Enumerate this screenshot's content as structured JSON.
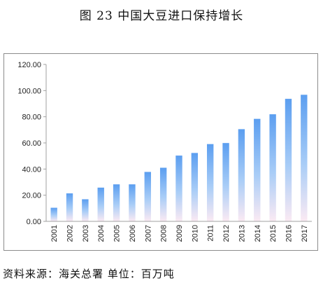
{
  "figure_title": "图 23  中国大豆进口保持增长",
  "source_note": "资料来源：海关总署  单位：百万吨",
  "chart_data": {
    "type": "bar",
    "title": "",
    "xlabel": "",
    "ylabel": "",
    "categories": [
      "2001",
      "2002",
      "2003",
      "2004",
      "2005",
      "2006",
      "2007",
      "2008",
      "2009",
      "2010",
      "2011",
      "2012",
      "2013",
      "2014",
      "2015",
      "2016",
      "2017"
    ],
    "values": [
      10.4,
      21.4,
      16.9,
      25.8,
      28.3,
      28.3,
      37.8,
      41.0,
      50.3,
      52.3,
      59.1,
      59.9,
      70.5,
      78.4,
      81.9,
      93.7,
      96.8
    ],
    "ylim": [
      0,
      120
    ],
    "yticks": [
      "0.00",
      "20.00",
      "40.00",
      "60.00",
      "80.00",
      "100.00",
      "120.00"
    ],
    "grid": false,
    "legend": "none",
    "colors": {
      "bar_top": "#5b9ef0",
      "bar_bottom": "#fbeaf3",
      "axis": "#a0a0a0",
      "text": "#222222"
    }
  }
}
